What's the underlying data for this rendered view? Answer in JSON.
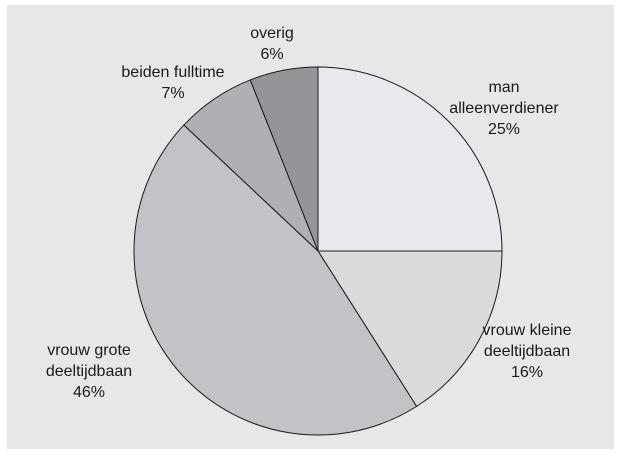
{
  "chart_data": {
    "type": "pie",
    "start_angle_deg": 0,
    "direction": "clockwise",
    "background_color": "#e6e7e8",
    "stroke_color": "#1a1a1a",
    "slices": [
      {
        "name": "man alleenverdiener",
        "label_lines": [
          "man",
          "alleenverdiener"
        ],
        "pct_label": "25%",
        "value": 25,
        "color": "#e8e9ee"
      },
      {
        "name": "vrouw kleine deeltijdbaan",
        "label_lines": [
          "vrouw kleine",
          "deeltijdbaan"
        ],
        "pct_label": "16%",
        "value": 16,
        "color": "#d9dadc"
      },
      {
        "name": "vrouw grote deeltijdbaan",
        "label_lines": [
          "vrouw grote",
          "deeltijdbaan"
        ],
        "pct_label": "46%",
        "value": 46,
        "color": "#c2c3c6"
      },
      {
        "name": "beiden fulltime",
        "label_lines": [
          "beiden fulltime"
        ],
        "pct_label": "7%",
        "value": 7,
        "color": "#aeb0b3"
      },
      {
        "name": "overig",
        "label_lines": [
          "overig"
        ],
        "pct_label": "6%",
        "value": 6,
        "color": "#939598"
      }
    ]
  }
}
